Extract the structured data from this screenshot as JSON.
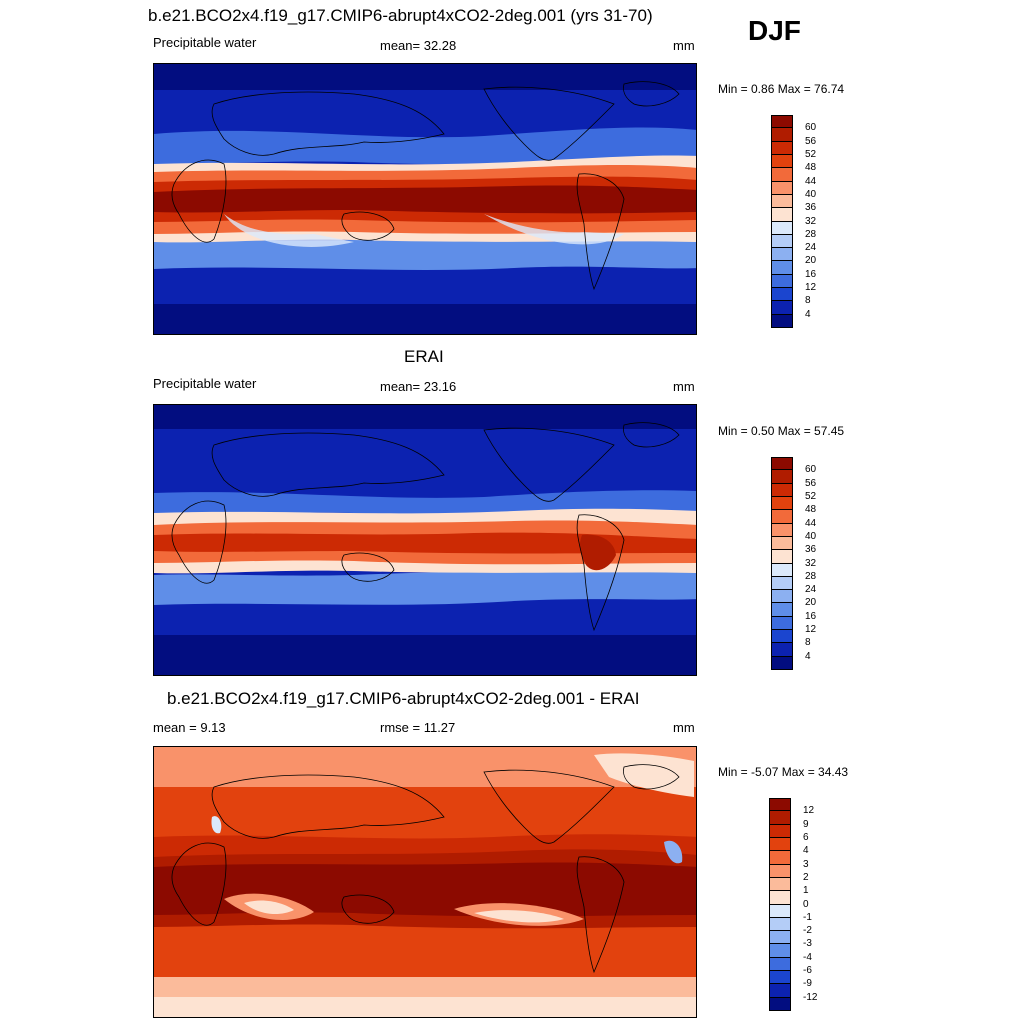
{
  "season": "DJF",
  "panels": [
    {
      "title": "b.e21.BCO2x4.f19_g17.CMIP6-abrupt4xCO2-2deg.001 (yrs 31-70)",
      "left_label": "Precipitable water",
      "center_label": "mean=  32.28",
      "right_label": "mm",
      "minmax": "Min =   0.86 Max =  76.74",
      "colorbar": {
        "labels": [
          "60",
          "56",
          "52",
          "48",
          "44",
          "40",
          "36",
          "32",
          "28",
          "24",
          "20",
          "16",
          "12",
          "8",
          "4"
        ],
        "colors": [
          "#8c0a00",
          "#b01c00",
          "#cc2a04",
          "#e2420e",
          "#f26a3a",
          "#f9926a",
          "#fbbb9b",
          "#fde3d2",
          "#dbe9fb",
          "#b4cdf7",
          "#8cb0f1",
          "#5f8ee8",
          "#3d6cde",
          "#1b45cf",
          "#0c22b0",
          "#020d80"
        ]
      }
    },
    {
      "title": "ERAI",
      "left_label": "Precipitable water",
      "center_label": "mean=  23.16",
      "right_label": "mm",
      "minmax": "Min =   0.50 Max =  57.45",
      "colorbar": {
        "labels": [
          "60",
          "56",
          "52",
          "48",
          "44",
          "40",
          "36",
          "32",
          "28",
          "24",
          "20",
          "16",
          "12",
          "8",
          "4"
        ],
        "colors": [
          "#8c0a00",
          "#b01c00",
          "#cc2a04",
          "#e2420e",
          "#f26a3a",
          "#f9926a",
          "#fbbb9b",
          "#fde3d2",
          "#dbe9fb",
          "#b4cdf7",
          "#8cb0f1",
          "#5f8ee8",
          "#3d6cde",
          "#1b45cf",
          "#0c22b0",
          "#020d80"
        ]
      }
    },
    {
      "title": "b.e21.BCO2x4.f19_g17.CMIP6-abrupt4xCO2-2deg.001 - ERAI",
      "left_label": "mean =   9.13",
      "center_label": "rmse =  11.27",
      "right_label": "mm",
      "minmax": "Min =  -5.07 Max =  34.43",
      "colorbar": {
        "labels": [
          "12",
          "9",
          "6",
          "4",
          "3",
          "2",
          "1",
          "0",
          "-1",
          "-2",
          "-3",
          "-4",
          "-6",
          "-9",
          "-12"
        ],
        "colors": [
          "#8c0a00",
          "#b01c00",
          "#cc2a04",
          "#e2420e",
          "#f26a3a",
          "#f9926a",
          "#fbbb9b",
          "#fde3d2",
          "#dbe9fb",
          "#b4cdf7",
          "#8cb0f1",
          "#5f8ee8",
          "#3d6cde",
          "#1b45cf",
          "#0c22b0",
          "#020d80"
        ]
      }
    }
  ]
}
